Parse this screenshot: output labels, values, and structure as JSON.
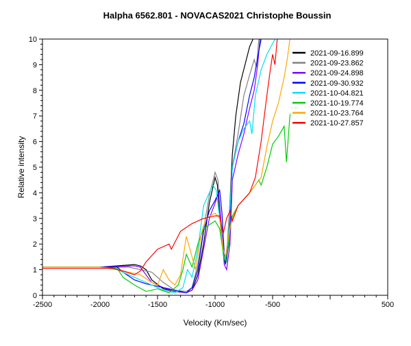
{
  "chart_data": {
    "type": "line",
    "title": "Halpha 6562.801 - NOVACAS2021   Christophe Boussin",
    "xlabel": "Velocity (Km/sec)",
    "ylabel": "Relative intensity",
    "xlim": [
      -2500,
      500
    ],
    "ylim": [
      0,
      10
    ],
    "x_tick_labels": [
      "-2500",
      "-2000",
      "-1500",
      "-1000",
      "-500",
      "500"
    ],
    "x_tick_values": [
      -2500,
      -2000,
      -1500,
      -1000,
      -500,
      500
    ],
    "y_tick_labels": [
      "0",
      "1",
      "2",
      "3",
      "4",
      "5",
      "6",
      "7",
      "8",
      "9",
      "10"
    ],
    "grid": false,
    "legend_position": "top-right",
    "series": [
      {
        "name": "2021-09-16.899",
        "color": "#000000",
        "points": [
          [
            -2500,
            1.1
          ],
          [
            -2000,
            1.1
          ],
          [
            -1700,
            1.2
          ],
          [
            -1650,
            1.15
          ],
          [
            -1600,
            1.0
          ],
          [
            -1550,
            0.6
          ],
          [
            -1450,
            0.25
          ],
          [
            -1350,
            0.15
          ],
          [
            -1250,
            0.1
          ],
          [
            -1200,
            0.2
          ],
          [
            -1150,
            0.8
          ],
          [
            -1100,
            2.0
          ],
          [
            -1050,
            3.6
          ],
          [
            -1000,
            4.6
          ],
          [
            -980,
            4.3
          ],
          [
            -950,
            2.5
          ],
          [
            -920,
            1.3
          ],
          [
            -900,
            1.5
          ],
          [
            -880,
            2.8
          ],
          [
            -850,
            5.5
          ],
          [
            -820,
            7.0
          ],
          [
            -780,
            8.3
          ],
          [
            -740,
            9.0
          ],
          [
            -700,
            9.7
          ],
          [
            -670,
            10.0
          ]
        ]
      },
      {
        "name": "2021-09-23.862",
        "color": "#808080",
        "points": [
          [
            -2500,
            1.1
          ],
          [
            -2000,
            1.1
          ],
          [
            -1750,
            1.1
          ],
          [
            -1650,
            1.0
          ],
          [
            -1550,
            0.9
          ],
          [
            -1450,
            0.5
          ],
          [
            -1350,
            0.2
          ],
          [
            -1250,
            0.15
          ],
          [
            -1200,
            0.3
          ],
          [
            -1150,
            1.2
          ],
          [
            -1100,
            2.6
          ],
          [
            -1050,
            3.9
          ],
          [
            -1000,
            4.8
          ],
          [
            -975,
            4.5
          ],
          [
            -950,
            2.6
          ],
          [
            -920,
            1.4
          ],
          [
            -900,
            1.6
          ],
          [
            -880,
            3.0
          ],
          [
            -850,
            5.0
          ],
          [
            -800,
            6.3
          ],
          [
            -750,
            7.8
          ],
          [
            -700,
            8.6
          ],
          [
            -660,
            9.2
          ],
          [
            -640,
            8.9
          ],
          [
            -620,
            10.0
          ]
        ]
      },
      {
        "name": "2021-09-24.898",
        "color": "#8000ff",
        "points": [
          [
            -2500,
            1.1
          ],
          [
            -2000,
            1.1
          ],
          [
            -1700,
            1.15
          ],
          [
            -1650,
            1.1
          ],
          [
            -1600,
            0.8
          ],
          [
            -1550,
            0.5
          ],
          [
            -1450,
            0.3
          ],
          [
            -1350,
            0.15
          ],
          [
            -1250,
            0.1
          ],
          [
            -1200,
            0.2
          ],
          [
            -1150,
            0.6
          ],
          [
            -1100,
            1.8
          ],
          [
            -1050,
            3.0
          ],
          [
            -1000,
            3.6
          ],
          [
            -970,
            4.0
          ],
          [
            -950,
            3.0
          ],
          [
            -920,
            1.2
          ],
          [
            -900,
            1.0
          ],
          [
            -870,
            2.0
          ],
          [
            -850,
            4.5
          ],
          [
            -800,
            5.5
          ],
          [
            -750,
            6.3
          ],
          [
            -700,
            7.3
          ],
          [
            -660,
            8.0
          ],
          [
            -630,
            9.0
          ],
          [
            -610,
            10.0
          ]
        ]
      },
      {
        "name": "2021-09-30.932",
        "color": "#0000ff",
        "points": [
          [
            -2500,
            1.1
          ],
          [
            -2000,
            1.1
          ],
          [
            -1850,
            1.1
          ],
          [
            -1800,
            0.9
          ],
          [
            -1700,
            0.6
          ],
          [
            -1600,
            0.45
          ],
          [
            -1500,
            0.35
          ],
          [
            -1400,
            0.25
          ],
          [
            -1300,
            0.15
          ],
          [
            -1250,
            0.1
          ],
          [
            -1200,
            0.3
          ],
          [
            -1150,
            1.0
          ],
          [
            -1100,
            2.5
          ],
          [
            -1050,
            3.3
          ],
          [
            -1000,
            3.7
          ],
          [
            -960,
            4.1
          ],
          [
            -940,
            3.2
          ],
          [
            -920,
            1.6
          ],
          [
            -910,
            1.2
          ],
          [
            -880,
            2.0
          ],
          [
            -850,
            5.0
          ],
          [
            -800,
            6.0
          ],
          [
            -750,
            6.7
          ],
          [
            -700,
            7.8
          ],
          [
            -660,
            8.5
          ],
          [
            -630,
            9.3
          ],
          [
            -600,
            10.0
          ]
        ]
      },
      {
        "name": "2021-10-04.821",
        "color": "#00e0f0",
        "points": [
          [
            -2500,
            1.1
          ],
          [
            -2000,
            1.1
          ],
          [
            -1850,
            1.0
          ],
          [
            -1750,
            0.8
          ],
          [
            -1650,
            0.6
          ],
          [
            -1550,
            0.4
          ],
          [
            -1450,
            0.2
          ],
          [
            -1350,
            0.1
          ],
          [
            -1280,
            0.3
          ],
          [
            -1240,
            1.0
          ],
          [
            -1200,
            0.7
          ],
          [
            -1150,
            1.8
          ],
          [
            -1100,
            3.5
          ],
          [
            -1050,
            4.0
          ],
          [
            -1020,
            4.3
          ],
          [
            -990,
            4.1
          ],
          [
            -960,
            3.0
          ],
          [
            -930,
            1.6
          ],
          [
            -910,
            1.4
          ],
          [
            -880,
            2.5
          ],
          [
            -850,
            5.0
          ],
          [
            -800,
            6.0
          ],
          [
            -750,
            6.5
          ],
          [
            -700,
            6.8
          ],
          [
            -680,
            6.3
          ],
          [
            -650,
            7.8
          ],
          [
            -600,
            8.8
          ],
          [
            -550,
            9.4
          ],
          [
            -480,
            10.0
          ]
        ]
      },
      {
        "name": "2021-10-19.774",
        "color": "#00cc00",
        "points": [
          [
            -2500,
            1.1
          ],
          [
            -2000,
            1.1
          ],
          [
            -1850,
            1.05
          ],
          [
            -1800,
            0.7
          ],
          [
            -1700,
            0.4
          ],
          [
            -1600,
            0.15
          ],
          [
            -1500,
            0.25
          ],
          [
            -1400,
            0.1
          ],
          [
            -1320,
            0.4
          ],
          [
            -1280,
            1.0
          ],
          [
            -1250,
            1.6
          ],
          [
            -1200,
            1.1
          ],
          [
            -1150,
            2.0
          ],
          [
            -1100,
            2.6
          ],
          [
            -1000,
            2.9
          ],
          [
            -960,
            2.6
          ],
          [
            -920,
            1.4
          ],
          [
            -900,
            1.3
          ],
          [
            -870,
            2.6
          ],
          [
            -850,
            3.1
          ],
          [
            -800,
            3.5
          ],
          [
            -700,
            4.0
          ],
          [
            -650,
            4.3
          ],
          [
            -620,
            4.5
          ],
          [
            -600,
            4.3
          ],
          [
            -550,
            5.0
          ],
          [
            -500,
            5.9
          ],
          [
            -450,
            6.2
          ],
          [
            -400,
            6.6
          ],
          [
            -380,
            5.2
          ],
          [
            -350,
            7.0
          ],
          [
            -320,
            7.5
          ],
          [
            -290,
            7.2
          ],
          [
            -260,
            8.0
          ]
        ]
      },
      {
        "name": "2021-10-23.764",
        "color": "#ffa500",
        "points": [
          [
            -2500,
            1.1
          ],
          [
            -2000,
            1.1
          ],
          [
            -1850,
            1.0
          ],
          [
            -1750,
            0.9
          ],
          [
            -1650,
            0.8
          ],
          [
            -1550,
            0.5
          ],
          [
            -1500,
            0.4
          ],
          [
            -1450,
            1.0
          ],
          [
            -1400,
            0.6
          ],
          [
            -1350,
            0.4
          ],
          [
            -1300,
            0.8
          ],
          [
            -1250,
            2.3
          ],
          [
            -1200,
            1.5
          ],
          [
            -1170,
            1.0
          ],
          [
            -1120,
            2.4
          ],
          [
            -1080,
            3.0
          ],
          [
            -1000,
            3.2
          ],
          [
            -960,
            3.0
          ],
          [
            -930,
            1.8
          ],
          [
            -910,
            1.5
          ],
          [
            -880,
            2.4
          ],
          [
            -850,
            3.0
          ],
          [
            -800,
            3.5
          ],
          [
            -700,
            4.0
          ],
          [
            -650,
            4.3
          ],
          [
            -600,
            4.6
          ],
          [
            -550,
            5.8
          ],
          [
            -500,
            6.8
          ],
          [
            -450,
            7.5
          ],
          [
            -400,
            8.5
          ],
          [
            -370,
            9.3
          ],
          [
            -350,
            10.0
          ]
        ]
      },
      {
        "name": "2021-10-27.857",
        "color": "#ff0000",
        "points": [
          [
            -2500,
            1.05
          ],
          [
            -2000,
            1.05
          ],
          [
            -1900,
            1.05
          ],
          [
            -1800,
            0.95
          ],
          [
            -1700,
            0.8
          ],
          [
            -1650,
            0.95
          ],
          [
            -1600,
            1.3
          ],
          [
            -1500,
            1.8
          ],
          [
            -1400,
            2.0
          ],
          [
            -1380,
            1.8
          ],
          [
            -1300,
            2.5
          ],
          [
            -1200,
            2.8
          ],
          [
            -1100,
            3.0
          ],
          [
            -1000,
            3.1
          ],
          [
            -960,
            3.1
          ],
          [
            -930,
            2.4
          ],
          [
            -900,
            3.0
          ],
          [
            -870,
            3.3
          ],
          [
            -850,
            2.9
          ],
          [
            -800,
            3.5
          ],
          [
            -700,
            4.0
          ],
          [
            -650,
            4.6
          ],
          [
            -600,
            6.0
          ],
          [
            -550,
            7.8
          ],
          [
            -520,
            8.8
          ],
          [
            -500,
            9.4
          ],
          [
            -480,
            9.0
          ],
          [
            -460,
            10.0
          ]
        ]
      }
    ]
  }
}
